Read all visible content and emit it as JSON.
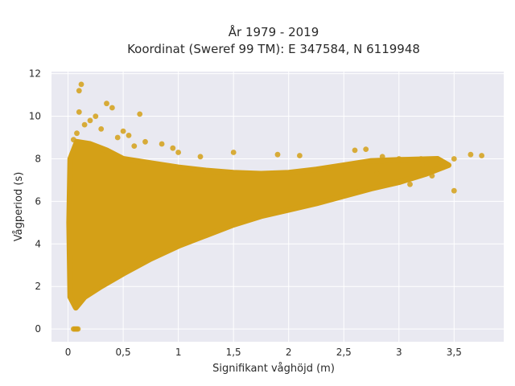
{
  "chart_data": {
    "type": "scatter",
    "title_line1": "År 1979 - 2019",
    "title_line2": "Koordinat (Sweref 99 TM): E 347584, N 6119948",
    "xlabel": "Signifikant våghöjd (m)",
    "ylabel": "Vågperiod (s)",
    "xlim": [
      -0.15,
      3.95
    ],
    "ylim": [
      -0.6,
      12.1
    ],
    "x_ticks": [
      0,
      0.5,
      1,
      1.5,
      2,
      2.5,
      3,
      3.5
    ],
    "x_tick_labels": [
      "0",
      "0,5",
      "1",
      "1,5",
      "2",
      "2,5",
      "3",
      "3,5"
    ],
    "y_ticks": [
      0,
      2,
      4,
      6,
      8,
      10,
      12
    ],
    "y_tick_labels": [
      "0",
      "2",
      "4",
      "6",
      "8",
      "10",
      "12"
    ],
    "grid": true,
    "marker_color": "#d4a017",
    "background_color": "#e9e9f1",
    "series": [
      {
        "points": [
          [
            0.05,
            0.0
          ],
          [
            0.06,
            0.0
          ],
          [
            0.07,
            0.0
          ],
          [
            0.08,
            0.0
          ],
          [
            0.09,
            0.0
          ],
          [
            0.12,
            11.5
          ],
          [
            0.1,
            11.2
          ],
          [
            0.35,
            10.6
          ],
          [
            0.4,
            10.4
          ],
          [
            0.65,
            10.1
          ],
          [
            0.1,
            10.2
          ],
          [
            0.25,
            10.0
          ],
          [
            0.2,
            9.8
          ],
          [
            0.15,
            9.6
          ],
          [
            0.3,
            9.4
          ],
          [
            0.5,
            9.3
          ],
          [
            0.08,
            9.2
          ],
          [
            0.45,
            9.0
          ],
          [
            0.55,
            9.1
          ],
          [
            0.05,
            8.9
          ],
          [
            0.7,
            8.8
          ],
          [
            0.85,
            8.7
          ],
          [
            0.6,
            8.6
          ],
          [
            0.95,
            8.5
          ],
          [
            1.0,
            8.3
          ],
          [
            1.5,
            8.3
          ],
          [
            1.2,
            8.1
          ],
          [
            1.9,
            8.2
          ],
          [
            2.1,
            8.15
          ],
          [
            2.6,
            8.4
          ],
          [
            2.7,
            8.45
          ],
          [
            2.85,
            8.1
          ],
          [
            3.0,
            8.0
          ],
          [
            3.2,
            8.0
          ],
          [
            3.35,
            8.0
          ],
          [
            3.5,
            8.0
          ],
          [
            3.65,
            8.2
          ],
          [
            3.75,
            8.15
          ],
          [
            3.5,
            6.5
          ],
          [
            3.3,
            7.2
          ],
          [
            3.1,
            6.8
          ],
          [
            2.95,
            6.9
          ],
          [
            2.8,
            7.3
          ],
          [
            3.25,
            7.8
          ],
          [
            3.4,
            7.6
          ]
        ]
      }
    ]
  }
}
